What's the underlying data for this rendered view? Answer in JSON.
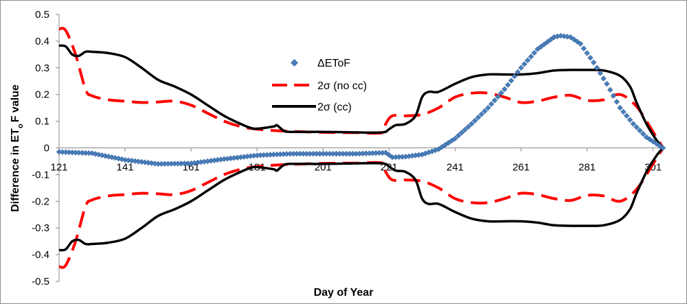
{
  "chart_data": {
    "type": "line",
    "title": "",
    "xlabel": "Day of Year",
    "ylabel": "Difference in ETₒF value",
    "ylabel_parts": {
      "pre": "Difference in ET",
      "sub": "o",
      "post": "F value"
    },
    "xlim": [
      121,
      304
    ],
    "ylim": [
      -0.5,
      0.5
    ],
    "xticks": [
      121,
      141,
      161,
      181,
      201,
      221,
      241,
      261,
      281,
      301
    ],
    "xtick_labels": [
      "121",
      "141",
      "161",
      "181",
      "201",
      "221",
      "241",
      "261",
      "281",
      "301"
    ],
    "yticks": [
      0.5,
      0.4,
      0.3,
      0.2,
      0.1,
      0,
      -0.1,
      -0.2,
      -0.3,
      -0.4,
      -0.5
    ],
    "ytick_labels": [
      "0.5",
      "0.4",
      "0.3",
      "0.2",
      "0.1",
      "0",
      "-0.1",
      "-0.2",
      "-0.3",
      "-0.4",
      "-0.5"
    ],
    "grid": false,
    "legend": "upper-middle",
    "series": [
      {
        "name": "ΔEToF",
        "style": "markers",
        "color": "#4a7ebb",
        "points": [
          [
            121,
            -0.015
          ],
          [
            131,
            -0.02
          ],
          [
            141,
            -0.045
          ],
          [
            151,
            -0.06
          ],
          [
            161,
            -0.058
          ],
          [
            171,
            -0.042
          ],
          [
            181,
            -0.028
          ],
          [
            191,
            -0.022
          ],
          [
            201,
            -0.022
          ],
          [
            211,
            -0.022
          ],
          [
            220,
            -0.018
          ],
          [
            222,
            -0.035
          ],
          [
            226,
            -0.033
          ],
          [
            231,
            -0.025
          ],
          [
            236,
            -0.005
          ],
          [
            241,
            0.035
          ],
          [
            246,
            0.09
          ],
          [
            251,
            0.15
          ],
          [
            256,
            0.22
          ],
          [
            261,
            0.3
          ],
          [
            266,
            0.37
          ],
          [
            271,
            0.415
          ],
          [
            273,
            0.42
          ],
          [
            276,
            0.415
          ],
          [
            279,
            0.39
          ],
          [
            283,
            0.32
          ],
          [
            287,
            0.24
          ],
          [
            291,
            0.15
          ],
          [
            295,
            0.09
          ],
          [
            299,
            0.04
          ],
          [
            304,
            0.0
          ]
        ]
      },
      {
        "name": "2σ (no cc)",
        "style": "dashed",
        "color": "#ff0000",
        "upper": [
          [
            121,
            0.445
          ],
          [
            123,
            0.44
          ],
          [
            126,
            0.35
          ],
          [
            129,
            0.22
          ],
          [
            131,
            0.195
          ],
          [
            136,
            0.18
          ],
          [
            141,
            0.175
          ],
          [
            146,
            0.17
          ],
          [
            151,
            0.172
          ],
          [
            156,
            0.175
          ],
          [
            161,
            0.16
          ],
          [
            166,
            0.13
          ],
          [
            171,
            0.1
          ],
          [
            176,
            0.08
          ],
          [
            181,
            0.07
          ],
          [
            186,
            0.065
          ],
          [
            191,
            0.062
          ],
          [
            201,
            0.058
          ],
          [
            211,
            0.057
          ],
          [
            219,
            0.057
          ],
          [
            220,
            0.09
          ],
          [
            222,
            0.12
          ],
          [
            226,
            0.12
          ],
          [
            231,
            0.125
          ],
          [
            236,
            0.15
          ],
          [
            241,
            0.19
          ],
          [
            246,
            0.205
          ],
          [
            251,
            0.205
          ],
          [
            256,
            0.19
          ],
          [
            261,
            0.17
          ],
          [
            266,
            0.175
          ],
          [
            271,
            0.19
          ],
          [
            276,
            0.197
          ],
          [
            281,
            0.178
          ],
          [
            286,
            0.18
          ],
          [
            291,
            0.2
          ],
          [
            296,
            0.155
          ],
          [
            301,
            0.06
          ],
          [
            304,
            0.0
          ]
        ],
        "lower": [
          [
            121,
            -0.445
          ],
          [
            123,
            -0.44
          ],
          [
            126,
            -0.35
          ],
          [
            129,
            -0.22
          ],
          [
            131,
            -0.195
          ],
          [
            136,
            -0.18
          ],
          [
            141,
            -0.175
          ],
          [
            146,
            -0.17
          ],
          [
            151,
            -0.172
          ],
          [
            156,
            -0.175
          ],
          [
            161,
            -0.16
          ],
          [
            166,
            -0.13
          ],
          [
            171,
            -0.1
          ],
          [
            176,
            -0.08
          ],
          [
            181,
            -0.07
          ],
          [
            186,
            -0.065
          ],
          [
            191,
            -0.062
          ],
          [
            201,
            -0.058
          ],
          [
            211,
            -0.057
          ],
          [
            219,
            -0.057
          ],
          [
            220,
            -0.09
          ],
          [
            222,
            -0.12
          ],
          [
            226,
            -0.12
          ],
          [
            231,
            -0.125
          ],
          [
            236,
            -0.15
          ],
          [
            241,
            -0.19
          ],
          [
            246,
            -0.205
          ],
          [
            251,
            -0.205
          ],
          [
            256,
            -0.19
          ],
          [
            261,
            -0.17
          ],
          [
            266,
            -0.175
          ],
          [
            271,
            -0.19
          ],
          [
            276,
            -0.197
          ],
          [
            281,
            -0.178
          ],
          [
            286,
            -0.18
          ],
          [
            291,
            -0.2
          ],
          [
            296,
            -0.155
          ],
          [
            301,
            -0.06
          ],
          [
            304,
            0.0
          ]
        ]
      },
      {
        "name": "2σ (cc)",
        "style": "solid",
        "color": "#000000",
        "upper": [
          [
            121,
            0.383
          ],
          [
            123,
            0.38
          ],
          [
            125,
            0.35
          ],
          [
            127,
            0.345
          ],
          [
            129,
            0.36
          ],
          [
            131,
            0.36
          ],
          [
            136,
            0.355
          ],
          [
            141,
            0.34
          ],
          [
            146,
            0.3
          ],
          [
            151,
            0.255
          ],
          [
            156,
            0.23
          ],
          [
            161,
            0.2
          ],
          [
            166,
            0.16
          ],
          [
            171,
            0.12
          ],
          [
            176,
            0.09
          ],
          [
            179,
            0.075
          ],
          [
            181,
            0.072
          ],
          [
            186,
            0.08
          ],
          [
            187,
            0.085
          ],
          [
            189,
            0.065
          ],
          [
            191,
            0.06
          ],
          [
            201,
            0.06
          ],
          [
            211,
            0.058
          ],
          [
            219,
            0.058
          ],
          [
            221,
            0.07
          ],
          [
            223,
            0.085
          ],
          [
            226,
            0.09
          ],
          [
            229,
            0.12
          ],
          [
            231,
            0.19
          ],
          [
            233,
            0.21
          ],
          [
            236,
            0.21
          ],
          [
            241,
            0.24
          ],
          [
            246,
            0.265
          ],
          [
            251,
            0.275
          ],
          [
            256,
            0.275
          ],
          [
            261,
            0.275
          ],
          [
            266,
            0.28
          ],
          [
            271,
            0.29
          ],
          [
            276,
            0.292
          ],
          [
            281,
            0.292
          ],
          [
            286,
            0.29
          ],
          [
            291,
            0.27
          ],
          [
            294,
            0.23
          ],
          [
            296,
            0.17
          ],
          [
            299,
            0.09
          ],
          [
            302,
            0.03
          ],
          [
            304,
            0.0
          ]
        ],
        "lower": [
          [
            121,
            -0.383
          ],
          [
            123,
            -0.38
          ],
          [
            125,
            -0.35
          ],
          [
            127,
            -0.345
          ],
          [
            129,
            -0.36
          ],
          [
            131,
            -0.36
          ],
          [
            136,
            -0.355
          ],
          [
            141,
            -0.34
          ],
          [
            146,
            -0.3
          ],
          [
            151,
            -0.255
          ],
          [
            156,
            -0.23
          ],
          [
            161,
            -0.2
          ],
          [
            166,
            -0.16
          ],
          [
            171,
            -0.12
          ],
          [
            176,
            -0.09
          ],
          [
            179,
            -0.075
          ],
          [
            181,
            -0.072
          ],
          [
            186,
            -0.08
          ],
          [
            187,
            -0.085
          ],
          [
            189,
            -0.065
          ],
          [
            191,
            -0.06
          ],
          [
            201,
            -0.06
          ],
          [
            211,
            -0.058
          ],
          [
            219,
            -0.058
          ],
          [
            221,
            -0.07
          ],
          [
            223,
            -0.085
          ],
          [
            226,
            -0.09
          ],
          [
            229,
            -0.12
          ],
          [
            231,
            -0.19
          ],
          [
            233,
            -0.21
          ],
          [
            236,
            -0.21
          ],
          [
            241,
            -0.24
          ],
          [
            246,
            -0.265
          ],
          [
            251,
            -0.275
          ],
          [
            256,
            -0.275
          ],
          [
            261,
            -0.275
          ],
          [
            266,
            -0.28
          ],
          [
            271,
            -0.29
          ],
          [
            276,
            -0.292
          ],
          [
            281,
            -0.292
          ],
          [
            286,
            -0.29
          ],
          [
            291,
            -0.27
          ],
          [
            294,
            -0.23
          ],
          [
            296,
            -0.17
          ],
          [
            299,
            -0.09
          ],
          [
            302,
            -0.03
          ],
          [
            304,
            0.0
          ]
        ]
      }
    ]
  }
}
